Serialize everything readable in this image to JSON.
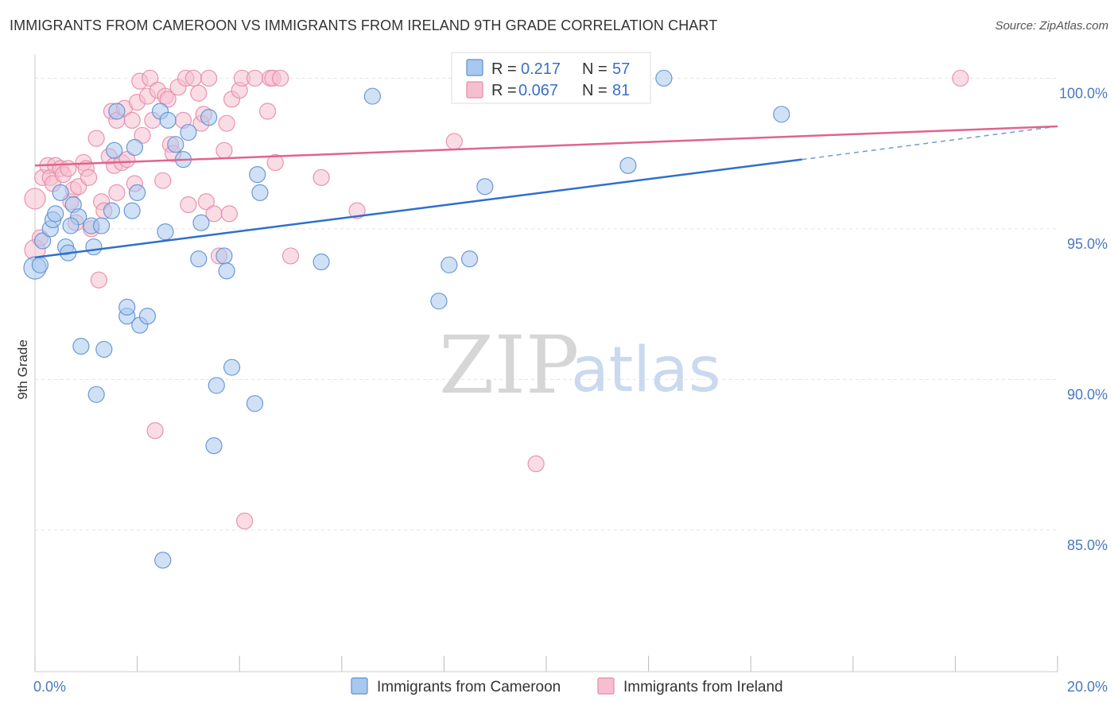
{
  "header": {
    "title": "IMMIGRANTS FROM CAMEROON VS IMMIGRANTS FROM IRELAND 9TH GRADE CORRELATION CHART",
    "source": "Source: ZipAtlas.com"
  },
  "watermark": {
    "zip": "ZIP",
    "atlas": "atlas"
  },
  "colors": {
    "cameroon_fill": "#a9c8ef",
    "cameroon_stroke": "#5b8fd4",
    "cameroon_line": "#2f6fcc",
    "ireland_fill": "#f6bfd0",
    "ireland_stroke": "#e58aa8",
    "ireland_line": "#e0648e",
    "grid": "#e3e3e3",
    "tick_label": "#4a78c2"
  },
  "chart_data": {
    "type": "scatter",
    "title": "IMMIGRANTS FROM CAMEROON VS IMMIGRANTS FROM IRELAND 9TH GRADE CORRELATION CHART",
    "xlabel": "",
    "ylabel": "9th Grade",
    "xlim": [
      0,
      20
    ],
    "ylim": [
      80.3,
      100.8
    ],
    "x_ticks": [
      0,
      2,
      4,
      6,
      8,
      10,
      12,
      14,
      16,
      18,
      20
    ],
    "x_tick_labels": [
      {
        "value": 0,
        "label": "0.0%"
      },
      {
        "value": 20,
        "label": "20.0%"
      }
    ],
    "y_tick_labels": [
      {
        "value": 100,
        "label": "100.0%"
      },
      {
        "value": 95,
        "label": "95.0%"
      },
      {
        "value": 90,
        "label": "90.0%"
      },
      {
        "value": 85,
        "label": "85.0%"
      }
    ],
    "grid": true,
    "legend_position": "top-center",
    "series": [
      {
        "name": "Immigrants from Cameroon",
        "key": "cameroon",
        "R": "0.217",
        "N": "57",
        "trend": {
          "x": [
            0,
            15
          ],
          "y": [
            94.05,
            97.3
          ],
          "dashed_to_x": 20,
          "dashed_to_y": 98.4
        },
        "points": [
          [
            0.0,
            93.7,
            14
          ],
          [
            0.1,
            93.8,
            10
          ],
          [
            0.15,
            94.6,
            10
          ],
          [
            0.3,
            95.0,
            10
          ],
          [
            0.35,
            95.3,
            10
          ],
          [
            0.4,
            95.5,
            10
          ],
          [
            0.5,
            96.2,
            10
          ],
          [
            0.6,
            94.4,
            10
          ],
          [
            0.65,
            94.2,
            10
          ],
          [
            0.75,
            95.8,
            10
          ],
          [
            0.85,
            95.4,
            10
          ],
          [
            0.7,
            95.1,
            10
          ],
          [
            1.1,
            95.1,
            10
          ],
          [
            1.15,
            94.4,
            10
          ],
          [
            1.3,
            95.1,
            10
          ],
          [
            0.9,
            91.1,
            10
          ],
          [
            1.2,
            89.5,
            10
          ],
          [
            1.35,
            91.0,
            10
          ],
          [
            1.5,
            95.6,
            10
          ],
          [
            1.55,
            97.6,
            10
          ],
          [
            1.6,
            98.9,
            10
          ],
          [
            1.8,
            92.1,
            10
          ],
          [
            1.8,
            92.4,
            10
          ],
          [
            1.9,
            95.6,
            10
          ],
          [
            1.95,
            97.7,
            10
          ],
          [
            2.0,
            96.2,
            10
          ],
          [
            2.05,
            91.8,
            10
          ],
          [
            2.2,
            92.1,
            10
          ],
          [
            2.45,
            98.9,
            10
          ],
          [
            2.5,
            84.0,
            10
          ],
          [
            2.55,
            94.9,
            10
          ],
          [
            2.6,
            98.6,
            10
          ],
          [
            2.75,
            97.8,
            10
          ],
          [
            2.9,
            97.3,
            10
          ],
          [
            3.0,
            98.2,
            10
          ],
          [
            3.2,
            94.0,
            10
          ],
          [
            3.25,
            95.2,
            10
          ],
          [
            3.4,
            98.7,
            10
          ],
          [
            3.5,
            87.8,
            10
          ],
          [
            3.55,
            89.8,
            10
          ],
          [
            3.7,
            94.1,
            10
          ],
          [
            3.75,
            93.6,
            10
          ],
          [
            3.85,
            90.4,
            10
          ],
          [
            4.3,
            89.2,
            10
          ],
          [
            4.35,
            96.8,
            10
          ],
          [
            4.4,
            96.2,
            10
          ],
          [
            5.6,
            93.9,
            10
          ],
          [
            6.6,
            99.4,
            10
          ],
          [
            7.9,
            92.6,
            10
          ],
          [
            8.1,
            93.8,
            10
          ],
          [
            8.5,
            94.0,
            10
          ],
          [
            8.8,
            96.4,
            10
          ],
          [
            11.6,
            97.1,
            10
          ],
          [
            12.3,
            100.0,
            10
          ],
          [
            14.6,
            98.8,
            10
          ]
        ]
      },
      {
        "name": "Immigrants from Ireland",
        "key": "ireland",
        "R": "0.067",
        "N": "81",
        "trend": {
          "x": [
            0,
            20
          ],
          "y": [
            97.1,
            98.4
          ]
        },
        "points": [
          [
            0.0,
            96.0,
            13
          ],
          [
            0.0,
            94.3,
            13
          ],
          [
            0.1,
            94.7,
            10
          ],
          [
            0.15,
            96.7,
            10
          ],
          [
            0.25,
            97.1,
            10
          ],
          [
            0.3,
            96.7,
            10
          ],
          [
            0.35,
            96.5,
            10
          ],
          [
            0.4,
            97.1,
            10
          ],
          [
            0.5,
            97.0,
            10
          ],
          [
            0.55,
            96.8,
            10
          ],
          [
            0.65,
            97.0,
            10
          ],
          [
            0.7,
            95.9,
            10
          ],
          [
            0.75,
            96.3,
            10
          ],
          [
            0.8,
            95.2,
            10
          ],
          [
            0.85,
            96.4,
            10
          ],
          [
            0.95,
            97.2,
            10
          ],
          [
            1.0,
            97.0,
            10
          ],
          [
            1.05,
            96.7,
            10
          ],
          [
            1.1,
            95.0,
            10
          ],
          [
            1.2,
            98.0,
            10
          ],
          [
            1.25,
            93.3,
            10
          ],
          [
            1.3,
            95.9,
            10
          ],
          [
            1.35,
            95.6,
            10
          ],
          [
            1.45,
            97.4,
            10
          ],
          [
            1.5,
            98.9,
            10
          ],
          [
            1.55,
            97.1,
            10
          ],
          [
            1.6,
            98.6,
            10
          ],
          [
            1.6,
            96.2,
            10
          ],
          [
            1.7,
            97.2,
            10
          ],
          [
            1.75,
            99.0,
            10
          ],
          [
            1.8,
            97.3,
            10
          ],
          [
            1.9,
            98.6,
            10
          ],
          [
            1.95,
            96.5,
            10
          ],
          [
            2.0,
            99.2,
            10
          ],
          [
            2.05,
            99.9,
            10
          ],
          [
            2.1,
            98.1,
            10
          ],
          [
            2.2,
            99.4,
            10
          ],
          [
            2.25,
            100.0,
            10
          ],
          [
            2.3,
            98.6,
            10
          ],
          [
            2.35,
            88.3,
            10
          ],
          [
            2.4,
            99.6,
            10
          ],
          [
            2.5,
            96.6,
            10
          ],
          [
            2.55,
            99.4,
            10
          ],
          [
            2.6,
            99.3,
            10
          ],
          [
            2.65,
            97.8,
            10
          ],
          [
            2.7,
            97.5,
            10
          ],
          [
            2.8,
            99.7,
            10
          ],
          [
            2.9,
            98.6,
            10
          ],
          [
            2.95,
            100.0,
            10
          ],
          [
            3.0,
            95.8,
            10
          ],
          [
            3.1,
            100.0,
            10
          ],
          [
            3.2,
            99.5,
            10
          ],
          [
            3.25,
            98.5,
            10
          ],
          [
            3.3,
            98.8,
            10
          ],
          [
            3.35,
            95.9,
            10
          ],
          [
            3.4,
            100.0,
            10
          ],
          [
            3.5,
            95.5,
            10
          ],
          [
            3.6,
            94.1,
            10
          ],
          [
            3.7,
            97.6,
            10
          ],
          [
            3.75,
            98.5,
            10
          ],
          [
            3.8,
            95.5,
            10
          ],
          [
            3.85,
            99.3,
            10
          ],
          [
            4.0,
            99.6,
            10
          ],
          [
            4.05,
            100.0,
            10
          ],
          [
            4.1,
            85.3,
            10
          ],
          [
            4.3,
            100.0,
            10
          ],
          [
            4.55,
            98.9,
            10
          ],
          [
            4.6,
            100.0,
            10
          ],
          [
            4.65,
            100.0,
            10
          ],
          [
            4.7,
            97.2,
            10
          ],
          [
            4.8,
            100.0,
            10
          ],
          [
            5.0,
            94.1,
            10
          ],
          [
            5.6,
            96.7,
            10
          ],
          [
            6.3,
            95.6,
            10
          ],
          [
            8.2,
            97.9,
            10
          ],
          [
            9.8,
            87.2,
            10
          ],
          [
            18.1,
            100.0,
            10
          ]
        ]
      }
    ]
  }
}
